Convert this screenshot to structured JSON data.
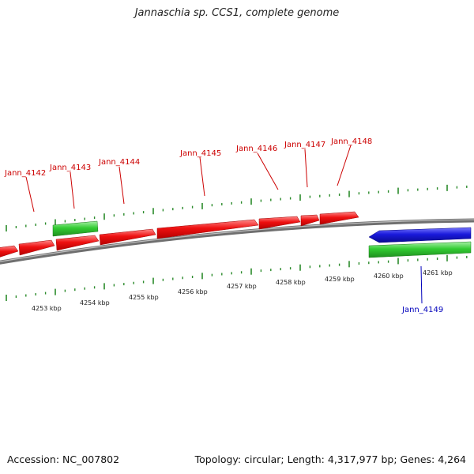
{
  "title": "Jannaschia sp. CCS1, complete genome",
  "footer": {
    "accession": "Accession: NC_007802",
    "stats": "Topology: circular; Length: 4,317,977 bp; Genes: 4,264"
  },
  "colors": {
    "forward_cds": "#ee1111",
    "reverse_cds": "#1a1adc",
    "rna_gene": "#33cc33",
    "backbone": "#8a8a8a",
    "tick": "#2a8a2a",
    "forward_label": "#cc0000",
    "reverse_label": "#0000bb"
  },
  "chart_data": {
    "type": "genome-map",
    "scale_unit": "kbp",
    "kbp_ticks": [
      "4253 kbp",
      "4254 kbp",
      "4255 kbp",
      "4256 kbp",
      "4257 kbp",
      "4258 kbp",
      "4259 kbp",
      "4260 kbp",
      "4261 kbp"
    ],
    "labeled_genes": [
      {
        "name": "Jann_4142",
        "strand": "forward"
      },
      {
        "name": "Jann_4143",
        "strand": "forward"
      },
      {
        "name": "Jann_4144",
        "strand": "forward"
      },
      {
        "name": "Jann_4145",
        "strand": "forward"
      },
      {
        "name": "Jann_4146",
        "strand": "forward"
      },
      {
        "name": "Jann_4147",
        "strand": "forward"
      },
      {
        "name": "Jann_4148",
        "strand": "forward"
      },
      {
        "name": "Jann_4149",
        "strand": "reverse"
      }
    ]
  }
}
